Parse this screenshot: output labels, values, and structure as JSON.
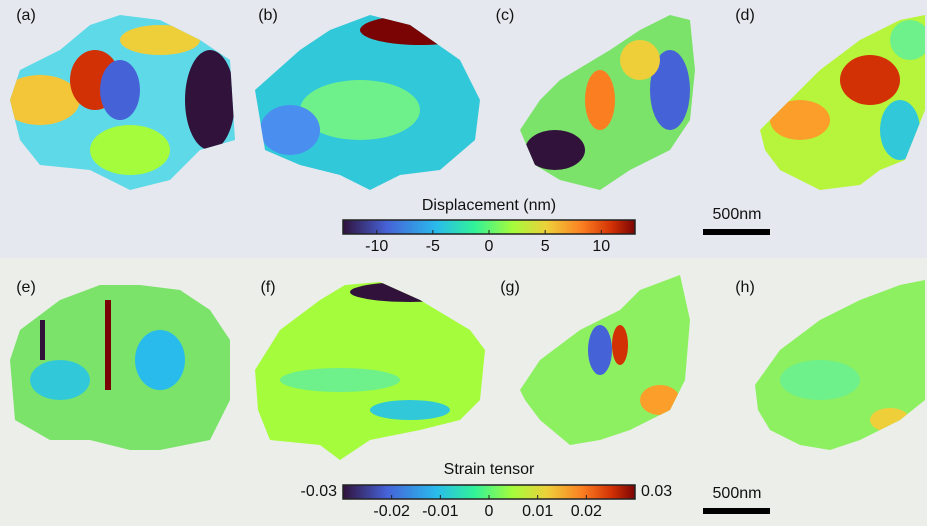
{
  "panels": {
    "labels": [
      "(a)",
      "(b)",
      "(c)",
      "(d)",
      "(e)",
      "(f)",
      "(g)",
      "(h)"
    ]
  },
  "colorbars": [
    {
      "title": "Displacement (nm)",
      "lim": [
        -13,
        13
      ],
      "ticks": [
        -10,
        -5,
        0,
        5,
        10
      ]
    },
    {
      "title": "Strain tensor",
      "lim": [
        -0.03,
        0.03
      ],
      "ticks": [
        -0.02,
        -0.01,
        0,
        0.01,
        0.02
      ]
    }
  ],
  "scale_bars": [
    "500nm",
    "500nm"
  ]
}
